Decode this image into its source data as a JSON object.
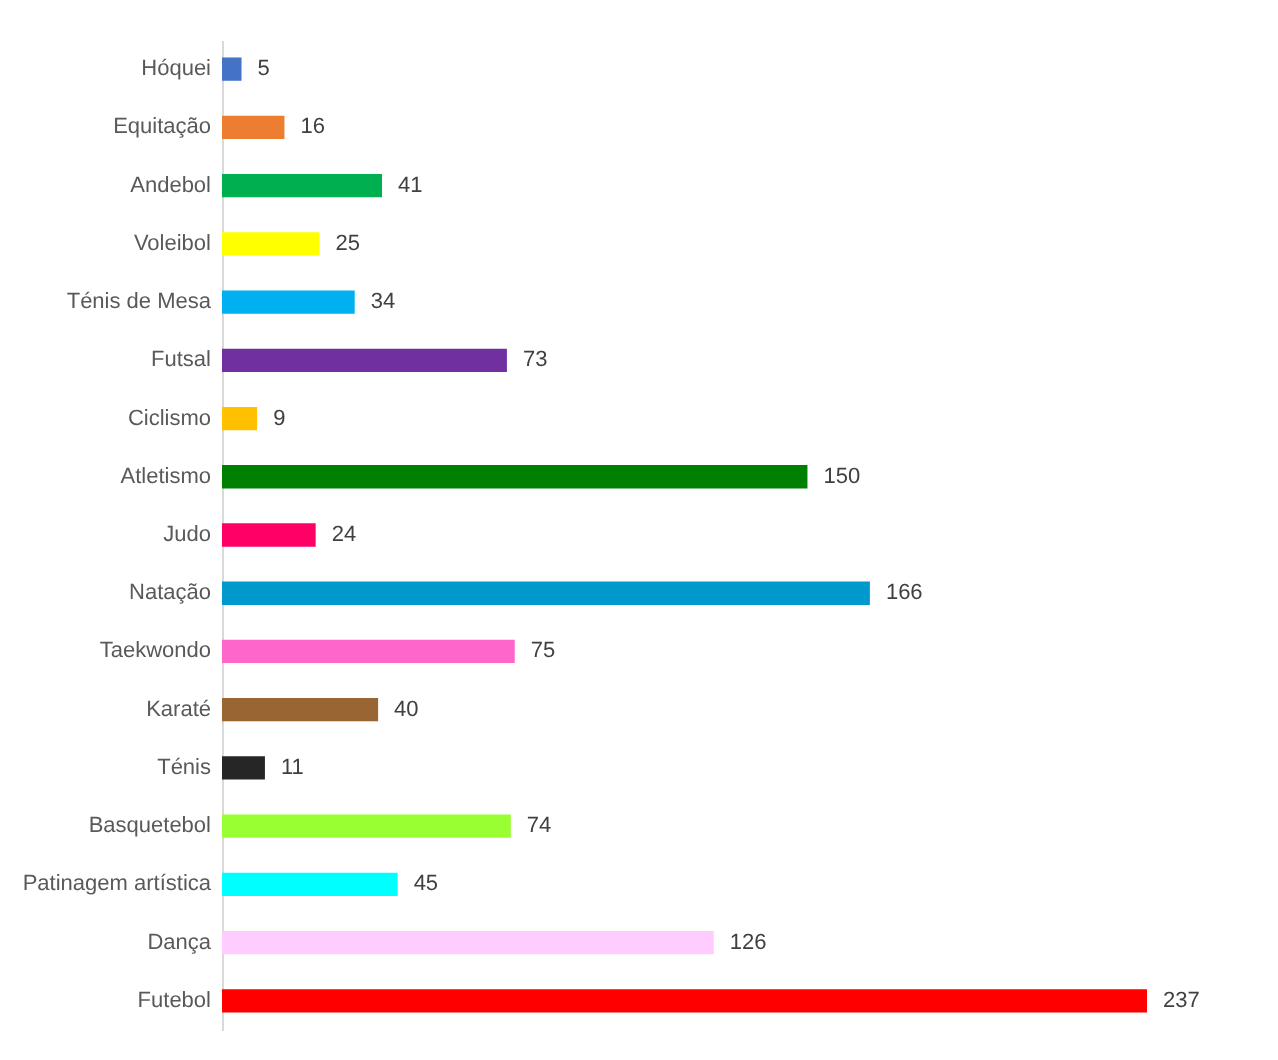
{
  "chart_data": {
    "type": "bar",
    "orientation": "horizontal",
    "data_labels": true,
    "categories": [
      "Hóquei",
      "Equitação",
      "Andebol",
      "Voleibol",
      "Ténis de Mesa",
      "Futsal",
      "Ciclismo",
      "Atletismo",
      "Judo",
      "Natação",
      "Taekwondo",
      "Karaté",
      "Ténis",
      "Basquetebol",
      "Patinagem artística",
      "Dança",
      "Futebol"
    ],
    "values": [
      5,
      16,
      41,
      25,
      34,
      73,
      9,
      150,
      24,
      166,
      75,
      40,
      11,
      74,
      45,
      126,
      237
    ],
    "colors": [
      "#4472c4",
      "#ed7d31",
      "#00b050",
      "#ffff00",
      "#00b0f0",
      "#7030a0",
      "#ffc000",
      "#008000",
      "#ff0066",
      "#0099cc",
      "#ff66cc",
      "#996633",
      "#262626",
      "#99ff33",
      "#00ffff",
      "#ffccff",
      "#ff0000"
    ]
  }
}
